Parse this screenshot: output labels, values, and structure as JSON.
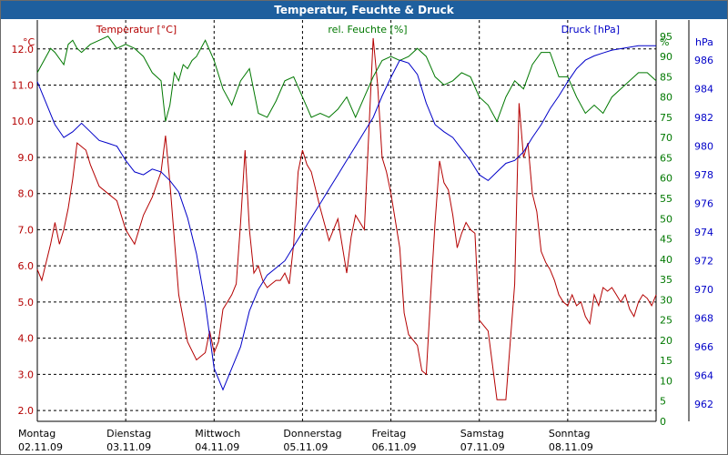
{
  "window": {
    "title": "Temperatur, Feuchte & Druck"
  },
  "chart_data": {
    "type": "line",
    "title": "Temperatur, Feuchte & Druck",
    "xlabel": "",
    "x_ticks": [
      {
        "day": "Montag",
        "date": "02.11.09"
      },
      {
        "day": "Dienstag",
        "date": "03.11.09"
      },
      {
        "day": "Mittwoch",
        "date": "04.11.09"
      },
      {
        "day": "Donnerstag",
        "date": "05.11.09"
      },
      {
        "day": "Freitag",
        "date": "06.11.09"
      },
      {
        "day": "Samstag",
        "date": "07.11.09"
      },
      {
        "day": "Sonntag",
        "date": "08.11.09"
      }
    ],
    "xlim": [
      0,
      7
    ],
    "grid": true,
    "axes": {
      "temp": {
        "unit": "°C",
        "label": "Temperatur [°C]",
        "color": "#b40000",
        "lim": [
          1.7,
          12.8
        ],
        "ticks": [
          2.0,
          3.0,
          4.0,
          5.0,
          6.0,
          7.0,
          8.0,
          9.0,
          10.0,
          11.0,
          12.0
        ]
      },
      "hum": {
        "unit": "%",
        "label": "rel. Feuchte [%]",
        "color": "#007800",
        "lim": [
          0,
          99
        ],
        "ticks": [
          0,
          5,
          10,
          15,
          20,
          25,
          30,
          35,
          40,
          45,
          50,
          55,
          60,
          65,
          70,
          75,
          80,
          85,
          90,
          95
        ]
      },
      "press": {
        "unit": "hPa",
        "label": "Druck [hPa]",
        "color": "#0000c8",
        "lim": [
          960.8,
          988.8
        ],
        "ticks": [
          962,
          964,
          966,
          968,
          970,
          972,
          974,
          976,
          978,
          980,
          982,
          984,
          986
        ]
      }
    },
    "series": [
      {
        "name": "Temperatur [°C]",
        "axis": "temp",
        "color": "#b40000",
        "x": [
          0,
          0.05,
          0.15,
          0.2,
          0.25,
          0.3,
          0.35,
          0.4,
          0.45,
          0.5,
          0.55,
          0.6,
          0.7,
          0.8,
          0.9,
          1.0,
          1.1,
          1.2,
          1.3,
          1.4,
          1.45,
          1.5,
          1.6,
          1.7,
          1.8,
          1.9,
          1.95,
          2.0,
          2.05,
          2.1,
          2.15,
          2.2,
          2.25,
          2.3,
          2.35,
          2.4,
          2.45,
          2.5,
          2.55,
          2.6,
          2.65,
          2.7,
          2.75,
          2.8,
          2.85,
          2.9,
          2.95,
          3.0,
          3.05,
          3.1,
          3.2,
          3.3,
          3.4,
          3.5,
          3.55,
          3.6,
          3.65,
          3.7,
          3.75,
          3.8,
          3.85,
          3.9,
          3.95,
          4.0,
          4.1,
          4.15,
          4.2,
          4.3,
          4.35,
          4.4,
          4.45,
          4.5,
          4.55,
          4.6,
          4.65,
          4.7,
          4.75,
          4.8,
          4.85,
          4.9,
          4.95,
          5.0,
          5.1,
          5.2,
          5.3,
          5.4,
          5.45,
          5.5,
          5.55,
          5.6,
          5.65,
          5.7,
          5.75,
          5.8,
          5.85,
          5.9,
          5.95,
          6.0,
          6.05,
          6.1,
          6.15,
          6.2,
          6.25,
          6.3,
          6.35,
          6.4,
          6.45,
          6.5,
          6.55,
          6.6,
          6.65,
          6.7,
          6.75,
          6.8,
          6.85,
          6.9,
          6.95,
          7.0
        ],
        "y": [
          5.9,
          5.6,
          6.6,
          7.2,
          6.6,
          7.0,
          7.6,
          8.4,
          9.4,
          9.3,
          9.2,
          8.8,
          8.2,
          8.0,
          7.8,
          7.0,
          6.6,
          7.4,
          7.9,
          8.6,
          9.6,
          8.3,
          5.2,
          3.9,
          3.4,
          3.6,
          4.2,
          3.6,
          3.9,
          4.8,
          5.0,
          5.2,
          5.5,
          7.2,
          9.2,
          7.0,
          5.8,
          6.0,
          5.6,
          5.4,
          5.5,
          5.6,
          5.6,
          5.8,
          5.5,
          6.6,
          8.6,
          9.2,
          8.8,
          8.6,
          7.6,
          6.7,
          7.3,
          5.8,
          6.8,
          7.4,
          7.2,
          7.0,
          9.7,
          12.3,
          11.0,
          9.0,
          8.6,
          8.0,
          6.5,
          4.7,
          4.1,
          3.8,
          3.1,
          3.0,
          5.2,
          7.2,
          8.9,
          8.3,
          8.1,
          7.4,
          6.5,
          6.9,
          7.2,
          7.0,
          6.9,
          4.5,
          4.2,
          2.3,
          2.3,
          5.5,
          10.5,
          9.0,
          9.4,
          8.0,
          7.5,
          6.4,
          6.1,
          5.9,
          5.6,
          5.2,
          5.0,
          4.9,
          5.2,
          4.9,
          5.0,
          4.6,
          4.4,
          5.2,
          4.9,
          5.4,
          5.3,
          5.4,
          5.2,
          5.0,
          5.2,
          4.8,
          4.6,
          5.0,
          5.2,
          5.1,
          4.9,
          5.2
        ]
      },
      {
        "name": "rel. Feuchte [%]",
        "axis": "hum",
        "color": "#007800",
        "x": [
          0,
          0.1,
          0.15,
          0.2,
          0.3,
          0.35,
          0.4,
          0.45,
          0.5,
          0.55,
          0.6,
          0.7,
          0.8,
          0.9,
          1.0,
          1.1,
          1.2,
          1.3,
          1.4,
          1.45,
          1.5,
          1.55,
          1.6,
          1.65,
          1.7,
          1.75,
          1.8,
          1.9,
          2.0,
          2.1,
          2.2,
          2.3,
          2.4,
          2.5,
          2.6,
          2.7,
          2.8,
          2.9,
          3.0,
          3.1,
          3.2,
          3.3,
          3.4,
          3.5,
          3.6,
          3.7,
          3.8,
          3.9,
          4.0,
          4.1,
          4.2,
          4.3,
          4.4,
          4.5,
          4.6,
          4.7,
          4.8,
          4.9,
          5.0,
          5.1,
          5.2,
          5.3,
          5.4,
          5.5,
          5.6,
          5.7,
          5.8,
          5.9,
          6.0,
          6.1,
          6.2,
          6.3,
          6.4,
          6.5,
          6.6,
          6.7,
          6.8,
          6.9,
          7.0
        ],
        "y": [
          86,
          90,
          92,
          91,
          88,
          93,
          94,
          92,
          91,
          92,
          93,
          94,
          95,
          92,
          93,
          92,
          90,
          86,
          84,
          74,
          78,
          86,
          84,
          88,
          87,
          89,
          90,
          94,
          89,
          82,
          78,
          84,
          87,
          76,
          75,
          79,
          84,
          85,
          80,
          75,
          76,
          75,
          77,
          80,
          75,
          80,
          85,
          89,
          90,
          89,
          90,
          92,
          90,
          85,
          83,
          84,
          86,
          85,
          80,
          78,
          74,
          80,
          84,
          82,
          88,
          91,
          91,
          85,
          85,
          80,
          76,
          78,
          76,
          80,
          82,
          84,
          86,
          86,
          84
        ]
      },
      {
        "name": "Druck [hPa]",
        "axis": "press",
        "color": "#0000c8",
        "x": [
          0,
          0.1,
          0.2,
          0.3,
          0.4,
          0.5,
          0.6,
          0.7,
          0.8,
          0.9,
          1.0,
          1.1,
          1.2,
          1.3,
          1.4,
          1.5,
          1.6,
          1.7,
          1.8,
          1.9,
          2.0,
          2.1,
          2.2,
          2.3,
          2.4,
          2.5,
          2.6,
          2.7,
          2.8,
          2.9,
          3.0,
          3.1,
          3.2,
          3.3,
          3.4,
          3.5,
          3.6,
          3.7,
          3.8,
          3.9,
          4.0,
          4.1,
          4.2,
          4.3,
          4.4,
          4.5,
          4.6,
          4.7,
          4.8,
          4.9,
          5.0,
          5.1,
          5.2,
          5.3,
          5.4,
          5.5,
          5.6,
          5.7,
          5.8,
          5.9,
          6.0,
          6.1,
          6.2,
          6.3,
          6.4,
          6.5,
          6.6,
          6.7,
          6.8,
          6.9,
          7.0
        ],
        "y": [
          984.5,
          983.0,
          981.5,
          980.6,
          981.0,
          981.6,
          981.0,
          980.4,
          980.2,
          980.0,
          979.0,
          978.2,
          978.0,
          978.4,
          978.2,
          977.6,
          976.8,
          975.0,
          972.5,
          969.0,
          964.5,
          963.0,
          964.5,
          966.0,
          968.5,
          970.0,
          971.0,
          971.5,
          972.0,
          973.0,
          974.0,
          975.0,
          976.0,
          977.0,
          978.0,
          979.0,
          980.0,
          981.0,
          982.0,
          983.5,
          984.8,
          986.0,
          985.8,
          985.0,
          983.0,
          981.5,
          981.0,
          980.6,
          979.8,
          979.0,
          978.0,
          977.6,
          978.2,
          978.8,
          979.0,
          979.6,
          980.6,
          981.5,
          982.6,
          983.5,
          984.5,
          985.4,
          986.0,
          986.3,
          986.5,
          986.7,
          986.8,
          986.9,
          987.0,
          987.0,
          987.0
        ]
      }
    ]
  }
}
